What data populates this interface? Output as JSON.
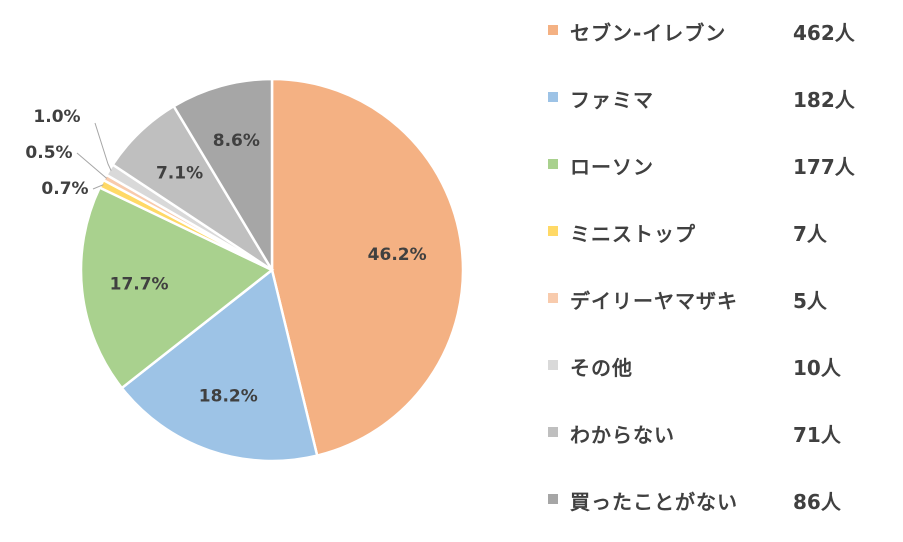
{
  "chart_data": {
    "type": "pie",
    "categories": [
      "セブン-イレブン",
      "ファミマ",
      "ローソン",
      "ミニストップ",
      "デイリーヤマザキ",
      "その他",
      "わからない",
      "買ったことがない"
    ],
    "values": [
      46.2,
      18.2,
      17.7,
      0.7,
      0.5,
      1.0,
      7.1,
      8.6
    ],
    "value_labels": [
      "46.2%",
      "18.2%",
      "17.7%",
      "0.7%",
      "0.5%",
      "1.0%",
      "7.1%",
      "8.6%"
    ],
    "counts": [
      "462人",
      "182人",
      "177人",
      "7人",
      "5人",
      "10人",
      "71人",
      "86人"
    ],
    "colors": [
      "#F4B183",
      "#9DC3E6",
      "#A9D18E",
      "#FFD966",
      "#F8CBAD",
      "#D9D9D9",
      "#BFBFBF",
      "#A6A6A6"
    ],
    "start_angle": "12 o'clock",
    "direction": "clockwise",
    "legend_position": "right"
  }
}
